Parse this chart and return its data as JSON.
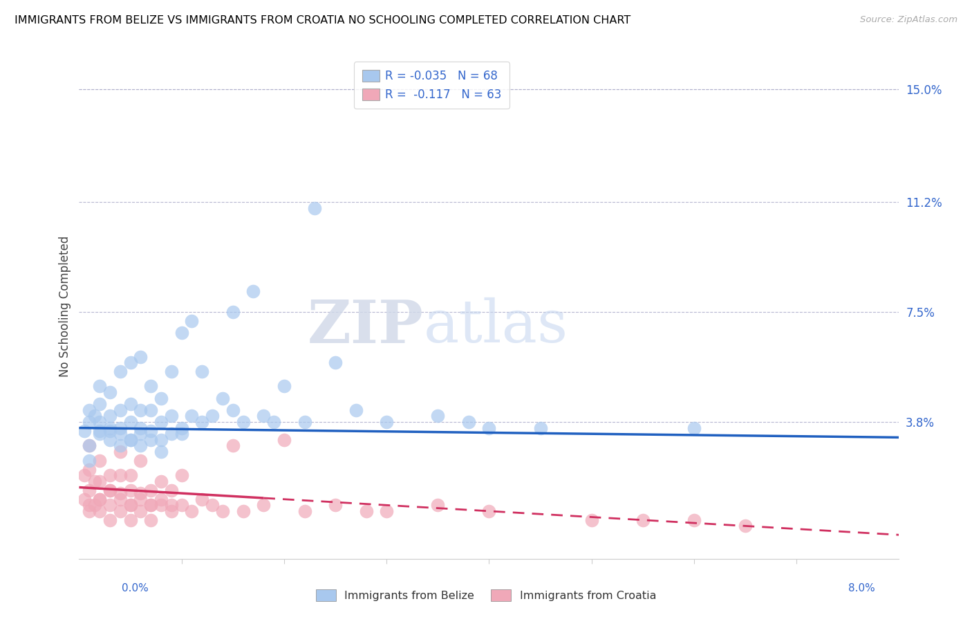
{
  "title": "IMMIGRANTS FROM BELIZE VS IMMIGRANTS FROM CROATIA NO SCHOOLING COMPLETED CORRELATION CHART",
  "source": "Source: ZipAtlas.com",
  "ylabel": "No Schooling Completed",
  "yticks_labels": [
    "3.8%",
    "7.5%",
    "11.2%",
    "15.0%"
  ],
  "yticks_vals": [
    0.038,
    0.075,
    0.112,
    0.15
  ],
  "xlim": [
    0.0,
    0.08
  ],
  "ylim": [
    -0.008,
    0.162
  ],
  "legend_belize": "R = -0.035   N = 68",
  "legend_croatia": "R =  -0.117   N = 63",
  "color_belize": "#a8c8ee",
  "color_croatia": "#f0a8b8",
  "color_belize_line": "#2060c0",
  "color_croatia_line": "#d03060",
  "watermark_zip": "ZIP",
  "watermark_atlas": "atlas",
  "belize_x": [
    0.0005,
    0.001,
    0.001,
    0.001,
    0.0015,
    0.002,
    0.002,
    0.002,
    0.002,
    0.003,
    0.003,
    0.003,
    0.003,
    0.004,
    0.004,
    0.004,
    0.004,
    0.005,
    0.005,
    0.005,
    0.005,
    0.006,
    0.006,
    0.006,
    0.006,
    0.007,
    0.007,
    0.007,
    0.008,
    0.008,
    0.008,
    0.009,
    0.009,
    0.01,
    0.01,
    0.011,
    0.011,
    0.012,
    0.012,
    0.013,
    0.014,
    0.015,
    0.015,
    0.016,
    0.017,
    0.018,
    0.019,
    0.02,
    0.022,
    0.023,
    0.025,
    0.027,
    0.03,
    0.035,
    0.038,
    0.04,
    0.045,
    0.06,
    0.001,
    0.002,
    0.003,
    0.004,
    0.005,
    0.006,
    0.007,
    0.008,
    0.009,
    0.01
  ],
  "belize_y": [
    0.035,
    0.038,
    0.042,
    0.025,
    0.04,
    0.035,
    0.038,
    0.044,
    0.05,
    0.035,
    0.04,
    0.048,
    0.032,
    0.03,
    0.036,
    0.042,
    0.055,
    0.032,
    0.038,
    0.044,
    0.058,
    0.03,
    0.036,
    0.042,
    0.06,
    0.035,
    0.042,
    0.05,
    0.038,
    0.046,
    0.028,
    0.04,
    0.055,
    0.036,
    0.068,
    0.04,
    0.072,
    0.038,
    0.055,
    0.04,
    0.046,
    0.042,
    0.075,
    0.038,
    0.082,
    0.04,
    0.038,
    0.05,
    0.038,
    0.11,
    0.058,
    0.042,
    0.038,
    0.04,
    0.038,
    0.036,
    0.036,
    0.036,
    0.03,
    0.034,
    0.036,
    0.034,
    0.032,
    0.034,
    0.032,
    0.032,
    0.034,
    0.034
  ],
  "croatia_x": [
    0.0005,
    0.0005,
    0.001,
    0.001,
    0.001,
    0.001,
    0.0015,
    0.0015,
    0.002,
    0.002,
    0.002,
    0.002,
    0.003,
    0.003,
    0.003,
    0.003,
    0.004,
    0.004,
    0.004,
    0.004,
    0.005,
    0.005,
    0.005,
    0.005,
    0.006,
    0.006,
    0.006,
    0.007,
    0.007,
    0.007,
    0.008,
    0.008,
    0.009,
    0.009,
    0.01,
    0.01,
    0.011,
    0.012,
    0.013,
    0.014,
    0.015,
    0.016,
    0.018,
    0.02,
    0.022,
    0.025,
    0.028,
    0.03,
    0.035,
    0.04,
    0.05,
    0.055,
    0.06,
    0.065,
    0.001,
    0.002,
    0.003,
    0.004,
    0.005,
    0.006,
    0.007,
    0.008,
    0.009
  ],
  "croatia_y": [
    0.012,
    0.02,
    0.008,
    0.015,
    0.022,
    0.03,
    0.01,
    0.018,
    0.008,
    0.012,
    0.018,
    0.025,
    0.01,
    0.015,
    0.02,
    0.005,
    0.008,
    0.014,
    0.02,
    0.028,
    0.01,
    0.015,
    0.02,
    0.005,
    0.008,
    0.014,
    0.025,
    0.01,
    0.015,
    0.005,
    0.01,
    0.018,
    0.008,
    0.015,
    0.01,
    0.02,
    0.008,
    0.012,
    0.01,
    0.008,
    0.03,
    0.008,
    0.01,
    0.032,
    0.008,
    0.01,
    0.008,
    0.008,
    0.01,
    0.008,
    0.005,
    0.005,
    0.005,
    0.003,
    0.01,
    0.012,
    0.015,
    0.012,
    0.01,
    0.012,
    0.01,
    0.012,
    0.01
  ]
}
